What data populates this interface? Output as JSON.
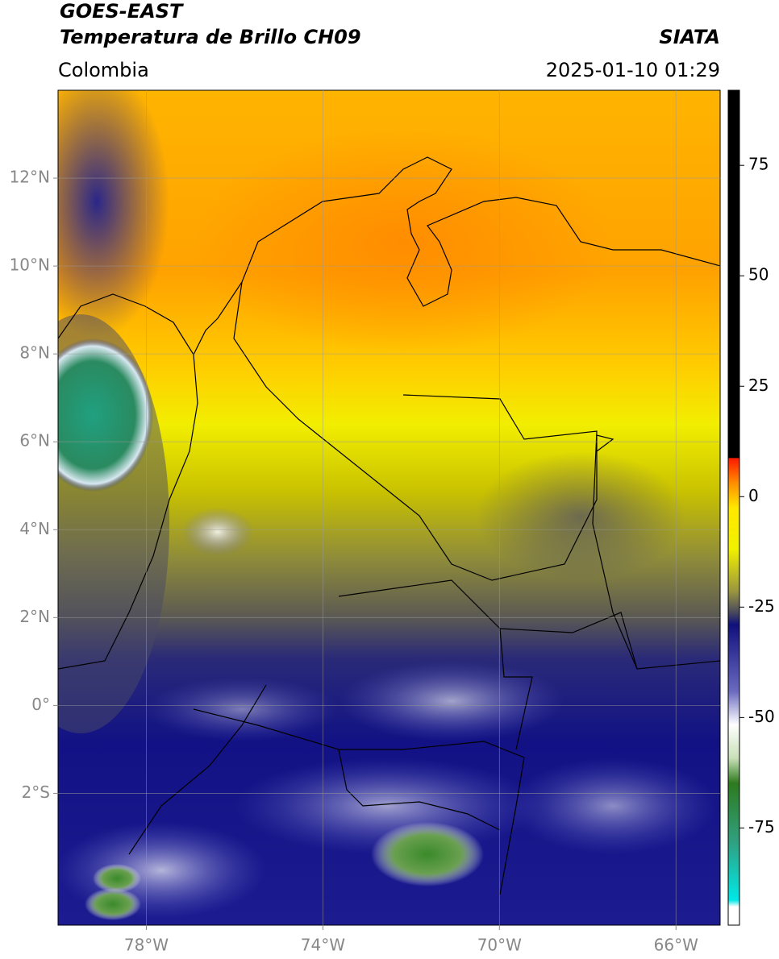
{
  "header": {
    "satellite": "GOES-EAST",
    "product": "Temperatura de Brillo CH09",
    "source": "SIATA",
    "region": "Colombia",
    "datetime": "2025-01-10 01:29"
  },
  "map": {
    "xlim": [
      -80,
      -65
    ],
    "ylim": [
      -5,
      14
    ],
    "grid": true,
    "xticks": [
      {
        "value": -78,
        "label": "78°W"
      },
      {
        "value": -74,
        "label": "74°W"
      },
      {
        "value": -70,
        "label": "70°W"
      },
      {
        "value": -66,
        "label": "66°W"
      }
    ],
    "yticks": [
      {
        "value": 12,
        "label": "12°N"
      },
      {
        "value": 10,
        "label": "10°N"
      },
      {
        "value": 8,
        "label": "8°N"
      },
      {
        "value": 6,
        "label": "6°N"
      },
      {
        "value": 4,
        "label": "4°N"
      },
      {
        "value": 2,
        "label": "2°N"
      },
      {
        "value": 0,
        "label": "0°"
      },
      {
        "value": -2,
        "label": "2°S"
      }
    ]
  },
  "colorbar": {
    "lim": [
      -97,
      92
    ],
    "ticks": [
      75,
      50,
      25,
      0,
      -25,
      -50,
      -75
    ]
  }
}
